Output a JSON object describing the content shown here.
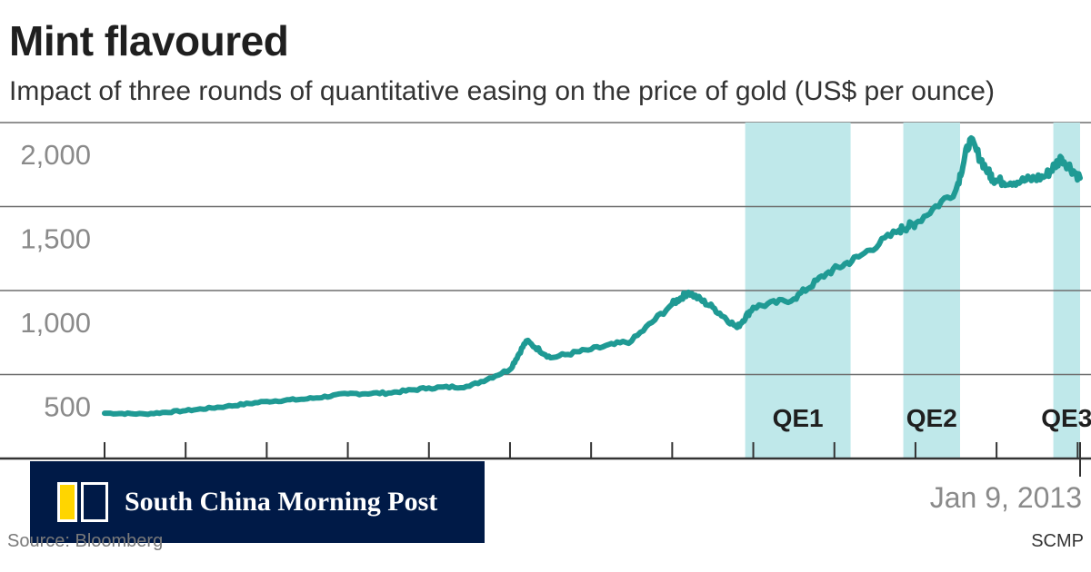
{
  "header": {
    "title": "Mint flavoured",
    "subtitle": "Impact of three rounds of quantitative easing on the price of gold (US$ per ounce)"
  },
  "footer": {
    "source": "Source: Bloomberg",
    "credit": "SCMP",
    "end_date": "Jan 9, 2013"
  },
  "badge": {
    "name": "South China Morning Post"
  },
  "colors": {
    "line": "#1f9a94",
    "shade": "#bfe8ea",
    "grid": "#6e6e6e",
    "badge_bg": "#001a47"
  },
  "chart_data": {
    "type": "line",
    "title": "Mint flavoured",
    "subtitle": "Impact of three rounds of quantitative easing on the price of gold (US$ per ounce)",
    "xlabel": "",
    "ylabel": "",
    "ylim": [
      0,
      2000
    ],
    "yticks": [
      500,
      1000,
      1500,
      2000
    ],
    "ytick_labels": [
      "500",
      "1,000",
      "1,500",
      "2,000"
    ],
    "grid": true,
    "end_label": "Jan 9, 2013",
    "xlim": [
      2001.0,
      2013.03
    ],
    "shaded_periods": [
      {
        "label": "QE1",
        "start": 2008.9,
        "end": 2010.2
      },
      {
        "label": "QE2",
        "start": 2010.85,
        "end": 2011.55
      },
      {
        "label": "QE3",
        "start": 2012.7,
        "end": 2013.03
      }
    ],
    "series": [
      {
        "name": "",
        "x": [
          2001.0,
          2001.5,
          2002.0,
          2002.5,
          2003.0,
          2003.5,
          2004.0,
          2004.5,
          2005.0,
          2005.5,
          2006.0,
          2006.2,
          2006.5,
          2007.0,
          2007.5,
          2008.0,
          2008.2,
          2008.5,
          2008.8,
          2009.0,
          2009.5,
          2009.9,
          2010.3,
          2010.8,
          2011.0,
          2011.5,
          2011.67,
          2011.9,
          2012.0,
          2012.3,
          2012.6,
          2012.8,
          2013.03
        ],
        "values": [
          270,
          265,
          285,
          310,
          340,
          355,
          385,
          390,
          420,
          430,
          530,
          700,
          600,
          650,
          700,
          920,
          990,
          900,
          780,
          900,
          950,
          1100,
          1200,
          1360,
          1400,
          1600,
          1900,
          1700,
          1650,
          1650,
          1680,
          1790,
          1670
        ]
      }
    ]
  }
}
